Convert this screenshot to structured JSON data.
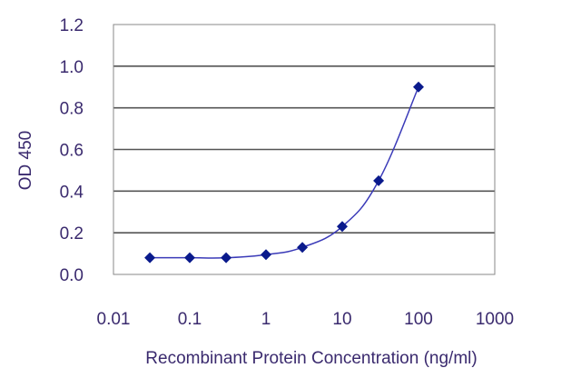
{
  "chart_data": {
    "type": "line",
    "title": "",
    "xlabel": "Recombinant Protein Concentration  (ng/ml)",
    "ylabel": "OD 450",
    "x_scale": "log",
    "xlim": [
      0.01,
      1000
    ],
    "ylim": [
      0.0,
      1.2
    ],
    "x_ticks": [
      "0.01",
      "0.1",
      "1",
      "10",
      "100",
      "1000"
    ],
    "y_ticks": [
      "0.0",
      "0.2",
      "0.4",
      "0.6",
      "0.8",
      "1.0",
      "1.2"
    ],
    "grid": "horizontal",
    "legend": "none",
    "colors": {
      "line": "#3a3ab8",
      "marker": "#0a1a8c",
      "grid": "#555555",
      "frame": "#888888",
      "text": "#3a2a6e"
    },
    "series": [
      {
        "x": [
          0.03,
          0.1,
          0.3,
          1,
          3,
          10,
          30,
          100
        ],
        "y": [
          0.08,
          0.08,
          0.08,
          0.095,
          0.13,
          0.23,
          0.45,
          0.9
        ]
      }
    ]
  }
}
